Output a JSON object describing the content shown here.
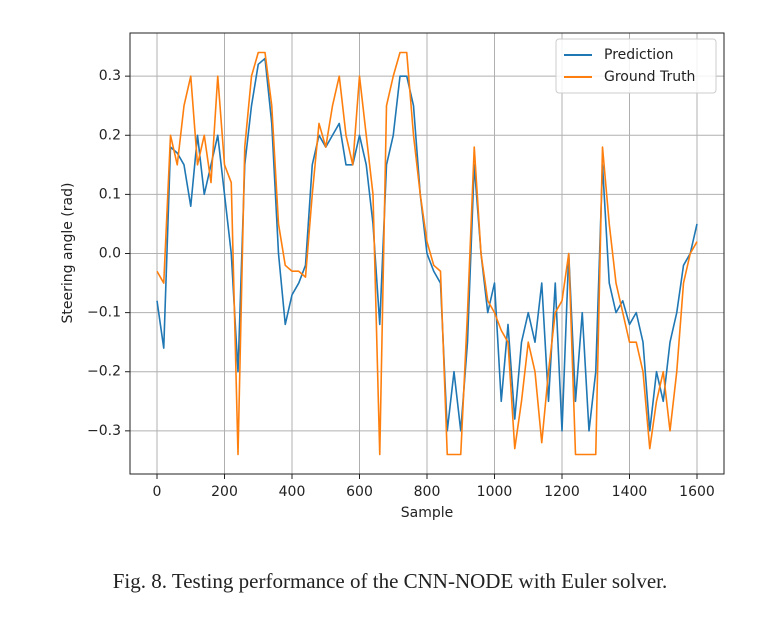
{
  "chart_data": {
    "type": "line",
    "xlabel": "Sample",
    "ylabel": "Steering angle (rad)",
    "caption": "Fig. 8.  Testing performance of the CNN-NODE with Euler solver.",
    "x": [
      0,
      20,
      40,
      60,
      80,
      100,
      120,
      140,
      160,
      180,
      200,
      220,
      240,
      260,
      280,
      300,
      320,
      340,
      360,
      380,
      400,
      420,
      440,
      460,
      480,
      500,
      520,
      540,
      560,
      580,
      600,
      620,
      640,
      660,
      680,
      700,
      720,
      740,
      760,
      780,
      800,
      820,
      840,
      860,
      880,
      900,
      920,
      940,
      960,
      980,
      1000,
      1020,
      1040,
      1060,
      1080,
      1100,
      1120,
      1140,
      1160,
      1180,
      1200,
      1220,
      1240,
      1260,
      1280,
      1300,
      1320,
      1340,
      1360,
      1380,
      1400,
      1420,
      1440,
      1460,
      1480,
      1500,
      1520,
      1540,
      1560,
      1580,
      1600
    ],
    "series": [
      {
        "name": "Prediction",
        "color": "#1f77b4",
        "values": [
          -0.08,
          -0.16,
          0.18,
          0.17,
          0.15,
          0.08,
          0.2,
          0.1,
          0.15,
          0.2,
          0.1,
          0.0,
          -0.2,
          0.15,
          0.25,
          0.32,
          0.33,
          0.22,
          0.0,
          -0.12,
          -0.07,
          -0.05,
          -0.02,
          0.15,
          0.2,
          0.18,
          0.2,
          0.22,
          0.15,
          0.15,
          0.2,
          0.15,
          0.05,
          -0.12,
          0.15,
          0.2,
          0.3,
          0.3,
          0.25,
          0.1,
          0.0,
          -0.03,
          -0.05,
          -0.3,
          -0.2,
          -0.3,
          -0.15,
          0.15,
          0.0,
          -0.1,
          -0.05,
          -0.25,
          -0.12,
          -0.28,
          -0.15,
          -0.1,
          -0.15,
          -0.05,
          -0.25,
          -0.05,
          -0.3,
          0.0,
          -0.25,
          -0.1,
          -0.3,
          -0.2,
          0.15,
          -0.05,
          -0.1,
          -0.08,
          -0.12,
          -0.1,
          -0.15,
          -0.3,
          -0.2,
          -0.25,
          -0.15,
          -0.1,
          -0.02,
          0.0,
          0.05
        ]
      },
      {
        "name": "Ground Truth",
        "color": "#ff7f0e",
        "values": [
          -0.03,
          -0.05,
          0.2,
          0.15,
          0.25,
          0.3,
          0.15,
          0.2,
          0.12,
          0.3,
          0.15,
          0.12,
          -0.34,
          0.18,
          0.3,
          0.34,
          0.34,
          0.25,
          0.05,
          -0.02,
          -0.03,
          -0.03,
          -0.04,
          0.1,
          0.22,
          0.18,
          0.25,
          0.3,
          0.2,
          0.15,
          0.3,
          0.2,
          0.1,
          -0.34,
          0.25,
          0.3,
          0.34,
          0.34,
          0.2,
          0.1,
          0.02,
          -0.02,
          -0.03,
          -0.34,
          -0.34,
          -0.34,
          -0.1,
          0.18,
          0.0,
          -0.08,
          -0.1,
          -0.13,
          -0.15,
          -0.33,
          -0.25,
          -0.15,
          -0.2,
          -0.32,
          -0.2,
          -0.1,
          -0.08,
          0.0,
          -0.34,
          -0.34,
          -0.34,
          -0.34,
          0.18,
          0.05,
          -0.05,
          -0.1,
          -0.15,
          -0.15,
          -0.2,
          -0.33,
          -0.25,
          -0.2,
          -0.3,
          -0.2,
          -0.05,
          0.0,
          0.02
        ]
      }
    ],
    "xlim": [
      -80,
      1680
    ],
    "ylim": [
      -0.373,
      0.373
    ],
    "xticks": [
      0,
      200,
      400,
      600,
      800,
      1000,
      1200,
      1400,
      1600
    ],
    "yticks": [
      {
        "value": -0.3,
        "label": "−0.3"
      },
      {
        "value": -0.2,
        "label": "−0.2"
      },
      {
        "value": -0.1,
        "label": "−0.1"
      },
      {
        "value": 0,
        "label": "0.0"
      },
      0.1,
      0.2,
      0.3
    ],
    "grid": true,
    "legend": "upper right"
  }
}
